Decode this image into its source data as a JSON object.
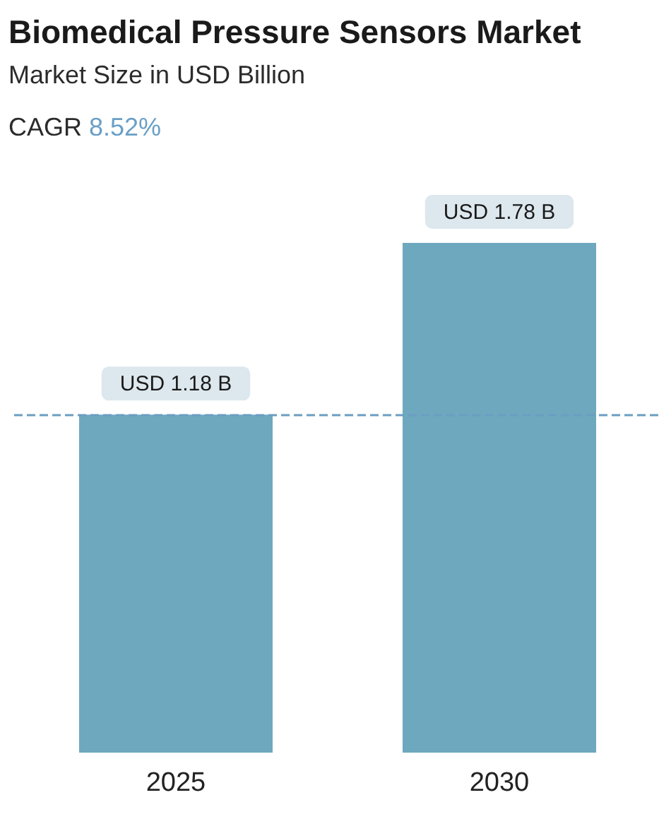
{
  "chart_data": {
    "type": "bar",
    "title": "Biomedical Pressure Sensors Market",
    "subtitle": "Market Size in USD Billion",
    "annotations": [
      "CAGR 8.52%"
    ],
    "categories": [
      "2025",
      "2030"
    ],
    "values": [
      1.18,
      1.78
    ],
    "color": "#6ea8be",
    "value_labels": [
      "USD 1.18 B",
      "USD 1.78 B"
    ],
    "ref_lines": [
      {
        "axis": "y",
        "value": 1.18,
        "label": null,
        "color": "#6b9ec2",
        "line_style": "dashed"
      }
    ]
  }
}
